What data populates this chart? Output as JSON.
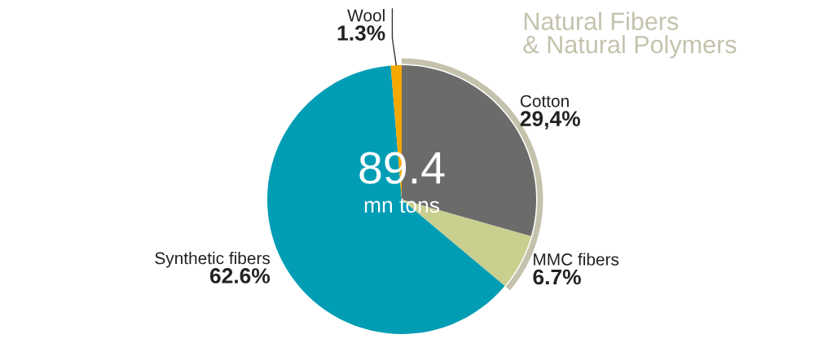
{
  "chart_data": {
    "type": "pie",
    "categories": [
      "Cotton",
      "MMC fibers",
      "Synthetic fibers",
      "Wool"
    ],
    "values": [
      29.4,
      6.7,
      62.6,
      1.3
    ],
    "colors": [
      "#6b6c6a",
      "#c8cf8f",
      "#009db5",
      "#f5a800"
    ],
    "value_labels": [
      "29,4%",
      "6.7%",
      "62.6%",
      "1.3%"
    ],
    "annotations": [
      "89.4",
      "mn tons",
      "Natural Fibers\n& Natural Polymers"
    ]
  }
}
